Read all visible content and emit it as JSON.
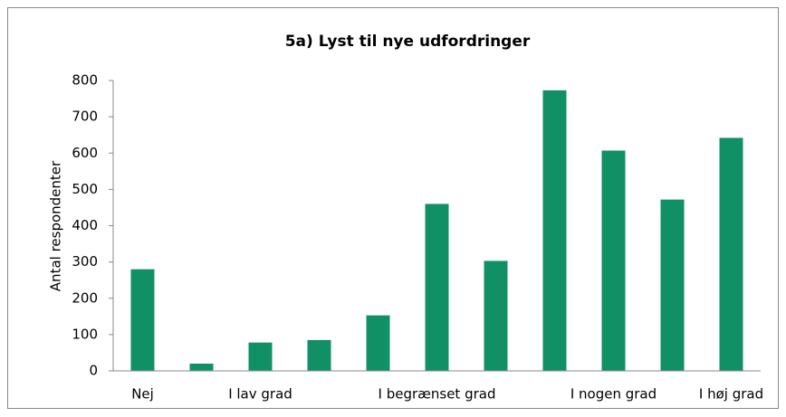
{
  "chart_data": {
    "type": "bar",
    "title": "5a) Lyst til nye udfordringer",
    "ylabel": "Antal respondenter",
    "categories": [
      "Nej",
      null,
      "I lav grad",
      null,
      null,
      "I begrænset grad",
      null,
      null,
      "I nogen grad",
      null,
      "I høj grad"
    ],
    "values": [
      280,
      20,
      78,
      85,
      153,
      460,
      303,
      773,
      607,
      472,
      642
    ],
    "color": "#109064",
    "ylim": [
      0,
      800
    ],
    "yticks": [
      0,
      100,
      200,
      300,
      400,
      500,
      600,
      700,
      800
    ],
    "grid": false
  }
}
